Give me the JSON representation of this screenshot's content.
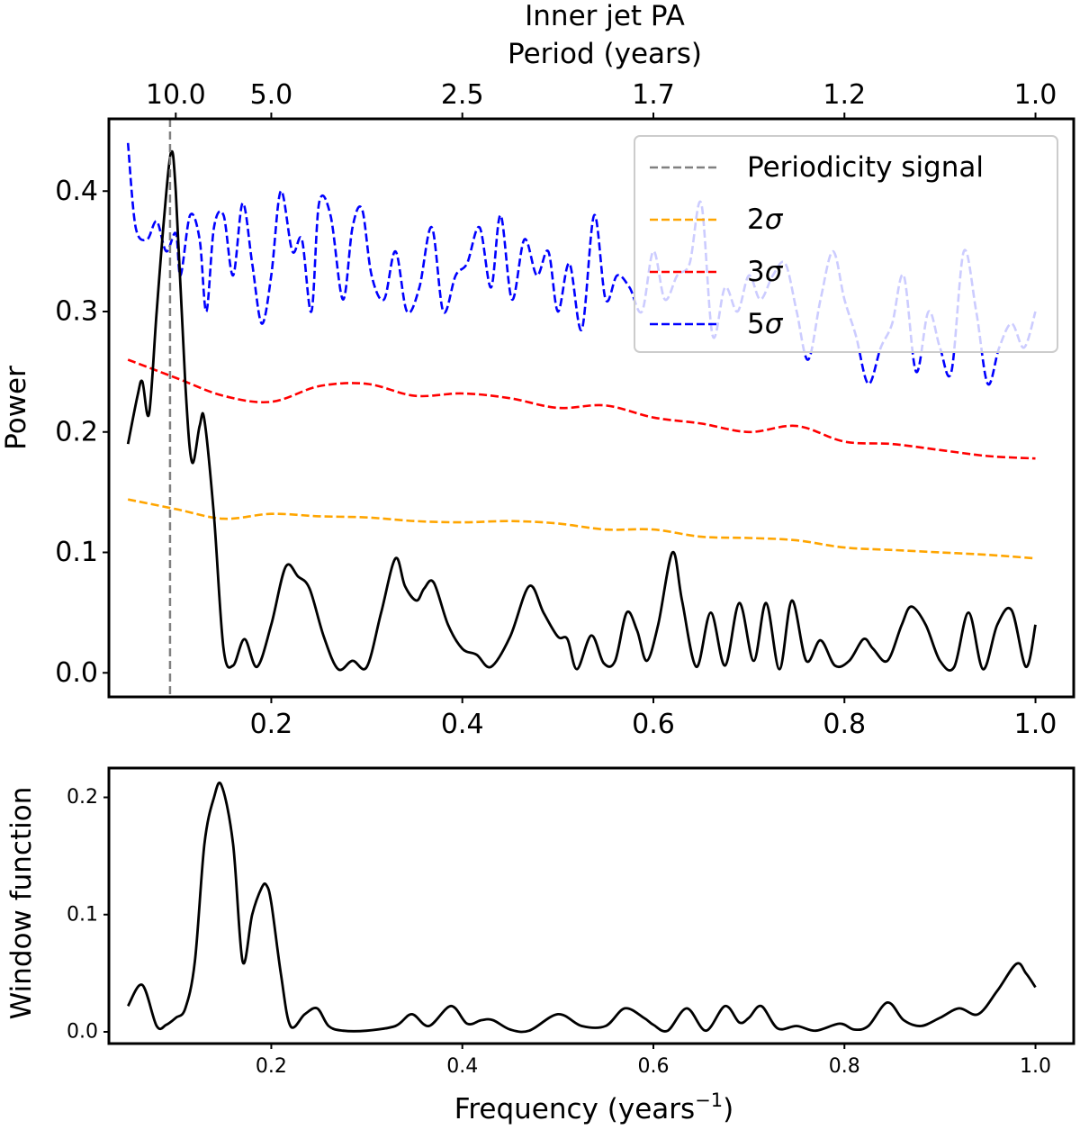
{
  "figure": {
    "title": "Inner jet PA",
    "top_axis_label": "Period (years)",
    "top_ticks": [
      {
        "freq": 0.1,
        "label": "10.0"
      },
      {
        "freq": 0.2,
        "label": "5.0"
      },
      {
        "freq": 0.4,
        "label": "2.5"
      },
      {
        "freq": 0.6,
        "label": "1.7"
      },
      {
        "freq": 0.8,
        "label": "1.2"
      },
      {
        "freq": 1.0,
        "label": "1.0"
      }
    ]
  },
  "chart_data": [
    {
      "type": "line",
      "panel": "periodogram",
      "xlabel": "",
      "ylabel": "Power",
      "xlim": [
        0.03,
        1.04
      ],
      "ylim": [
        -0.02,
        0.46
      ],
      "x_ticks": [
        "0.2",
        "0.4",
        "0.6",
        "0.8",
        "1.0"
      ],
      "y_ticks": [
        "0.0",
        "0.1",
        "0.2",
        "0.3",
        "0.4"
      ],
      "vline": {
        "name": "Periodicity signal",
        "x": 0.094,
        "color": "#808080",
        "style": "dashed"
      },
      "legend_position": "top-right",
      "legend": [
        {
          "label": "Periodicity signal",
          "prefix": "",
          "sigma": false,
          "color": "#808080"
        },
        {
          "label": "2",
          "prefix": "2",
          "sigma": true,
          "color": "#FFA500"
        },
        {
          "label": "3",
          "prefix": "3",
          "sigma": true,
          "color": "#FF0000"
        },
        {
          "label": "5",
          "prefix": "5",
          "sigma": true,
          "color": "#0000FF"
        }
      ],
      "series": [
        {
          "name": "Power",
          "color": "#000000",
          "style": "solid",
          "x": [
            0.05,
            0.06,
            0.065,
            0.072,
            0.08,
            0.088,
            0.095,
            0.1,
            0.11,
            0.117,
            0.125,
            0.13,
            0.14,
            0.15,
            0.16,
            0.172,
            0.185,
            0.2,
            0.215,
            0.228,
            0.24,
            0.255,
            0.27,
            0.285,
            0.3,
            0.315,
            0.33,
            0.34,
            0.352,
            0.36,
            0.37,
            0.385,
            0.4,
            0.415,
            0.43,
            0.45,
            0.47,
            0.485,
            0.5,
            0.51,
            0.52,
            0.535,
            0.548,
            0.56,
            0.572,
            0.583,
            0.593,
            0.605,
            0.62,
            0.63,
            0.645,
            0.66,
            0.675,
            0.69,
            0.705,
            0.718,
            0.732,
            0.745,
            0.76,
            0.775,
            0.79,
            0.805,
            0.82,
            0.83,
            0.845,
            0.86,
            0.87,
            0.885,
            0.9,
            0.915,
            0.93,
            0.945,
            0.96,
            0.975,
            0.99,
            1.0
          ],
          "values": [
            0.19,
            0.23,
            0.242,
            0.215,
            0.3,
            0.38,
            0.432,
            0.4,
            0.24,
            0.175,
            0.205,
            0.21,
            0.13,
            0.02,
            0.006,
            0.028,
            0.005,
            0.04,
            0.088,
            0.08,
            0.07,
            0.03,
            0.003,
            0.01,
            0.005,
            0.05,
            0.095,
            0.072,
            0.06,
            0.07,
            0.075,
            0.04,
            0.02,
            0.015,
            0.005,
            0.03,
            0.072,
            0.05,
            0.03,
            0.028,
            0.003,
            0.031,
            0.008,
            0.01,
            0.05,
            0.035,
            0.01,
            0.04,
            0.1,
            0.06,
            0.005,
            0.05,
            0.006,
            0.058,
            0.01,
            0.058,
            0.003,
            0.06,
            0.01,
            0.027,
            0.006,
            0.01,
            0.028,
            0.02,
            0.01,
            0.04,
            0.055,
            0.04,
            0.01,
            0.005,
            0.05,
            0.003,
            0.04,
            0.052,
            0.005,
            0.04
          ]
        },
        {
          "name": "2σ",
          "color": "#FFA500",
          "style": "dashed",
          "x": [
            0.05,
            0.1,
            0.15,
            0.2,
            0.25,
            0.3,
            0.35,
            0.4,
            0.45,
            0.5,
            0.55,
            0.6,
            0.65,
            0.7,
            0.75,
            0.8,
            0.85,
            0.9,
            0.95,
            1.0
          ],
          "values": [
            0.144,
            0.136,
            0.128,
            0.132,
            0.13,
            0.129,
            0.126,
            0.125,
            0.126,
            0.124,
            0.119,
            0.119,
            0.113,
            0.112,
            0.11,
            0.104,
            0.102,
            0.1,
            0.098,
            0.095
          ]
        },
        {
          "name": "3σ",
          "color": "#FF0000",
          "style": "dashed",
          "x": [
            0.05,
            0.1,
            0.15,
            0.2,
            0.25,
            0.3,
            0.35,
            0.4,
            0.45,
            0.5,
            0.55,
            0.6,
            0.65,
            0.7,
            0.75,
            0.8,
            0.85,
            0.9,
            0.95,
            1.0
          ],
          "values": [
            0.26,
            0.245,
            0.23,
            0.225,
            0.238,
            0.24,
            0.23,
            0.232,
            0.228,
            0.22,
            0.222,
            0.212,
            0.207,
            0.2,
            0.205,
            0.192,
            0.19,
            0.185,
            0.18,
            0.178
          ]
        },
        {
          "name": "5σ",
          "color": "#0000FF",
          "style": "dashed",
          "x": [
            0.05,
            0.058,
            0.07,
            0.08,
            0.09,
            0.1,
            0.105,
            0.115,
            0.125,
            0.132,
            0.14,
            0.15,
            0.16,
            0.17,
            0.18,
            0.19,
            0.2,
            0.21,
            0.222,
            0.232,
            0.242,
            0.25,
            0.262,
            0.275,
            0.285,
            0.295,
            0.305,
            0.318,
            0.33,
            0.342,
            0.355,
            0.368,
            0.38,
            0.393,
            0.405,
            0.418,
            0.43,
            0.44,
            0.452,
            0.465,
            0.478,
            0.49,
            0.5,
            0.512,
            0.525,
            0.538,
            0.55,
            0.562,
            0.575,
            0.588,
            0.6,
            0.612,
            0.625,
            0.638,
            0.65,
            0.662,
            0.675,
            0.688,
            0.7,
            0.712,
            0.725,
            0.738,
            0.75,
            0.762,
            0.775,
            0.788,
            0.8,
            0.812,
            0.825,
            0.838,
            0.85,
            0.862,
            0.875,
            0.888,
            0.9,
            0.912,
            0.925,
            0.938,
            0.95,
            0.962,
            0.975,
            0.988,
            1.0
          ],
          "values": [
            0.44,
            0.37,
            0.36,
            0.375,
            0.35,
            0.365,
            0.33,
            0.38,
            0.36,
            0.3,
            0.37,
            0.38,
            0.33,
            0.39,
            0.34,
            0.29,
            0.33,
            0.4,
            0.35,
            0.36,
            0.3,
            0.39,
            0.38,
            0.31,
            0.37,
            0.385,
            0.33,
            0.31,
            0.35,
            0.3,
            0.32,
            0.37,
            0.3,
            0.33,
            0.34,
            0.37,
            0.32,
            0.38,
            0.31,
            0.36,
            0.33,
            0.35,
            0.3,
            0.34,
            0.285,
            0.38,
            0.31,
            0.33,
            0.32,
            0.3,
            0.35,
            0.31,
            0.33,
            0.34,
            0.39,
            0.28,
            0.32,
            0.3,
            0.33,
            0.31,
            0.33,
            0.34,
            0.3,
            0.26,
            0.31,
            0.35,
            0.31,
            0.28,
            0.24,
            0.27,
            0.29,
            0.33,
            0.25,
            0.3,
            0.27,
            0.25,
            0.35,
            0.3,
            0.24,
            0.27,
            0.29,
            0.27,
            0.3
          ]
        }
      ]
    },
    {
      "type": "line",
      "panel": "window",
      "xlabel": "Frequency (years",
      "xlabel_sup": "−1",
      "xlabel_close": ")",
      "ylabel": "Window function",
      "xlim": [
        0.03,
        1.04
      ],
      "ylim": [
        -0.01,
        0.225
      ],
      "x_ticks": [
        "0.2",
        "0.4",
        "0.6",
        "0.8",
        "1.0"
      ],
      "y_ticks": [
        "0.0",
        "0.1",
        "0.2"
      ],
      "series": [
        {
          "name": "Window function",
          "color": "#000000",
          "style": "solid",
          "x": [
            0.05,
            0.065,
            0.08,
            0.09,
            0.1,
            0.11,
            0.12,
            0.13,
            0.14,
            0.148,
            0.16,
            0.17,
            0.18,
            0.19,
            0.195,
            0.2,
            0.21,
            0.22,
            0.235,
            0.248,
            0.26,
            0.275,
            0.3,
            0.33,
            0.347,
            0.365,
            0.388,
            0.405,
            0.42,
            0.432,
            0.45,
            0.47,
            0.5,
            0.525,
            0.55,
            0.57,
            0.59,
            0.6,
            0.615,
            0.635,
            0.655,
            0.675,
            0.69,
            0.7,
            0.713,
            0.73,
            0.75,
            0.77,
            0.795,
            0.81,
            0.825,
            0.845,
            0.862,
            0.88,
            0.9,
            0.92,
            0.94,
            0.96,
            0.98,
            0.99,
            1.0
          ],
          "values": [
            0.022,
            0.04,
            0.005,
            0.006,
            0.012,
            0.02,
            0.06,
            0.16,
            0.2,
            0.21,
            0.16,
            0.06,
            0.1,
            0.123,
            0.125,
            0.11,
            0.05,
            0.005,
            0.015,
            0.02,
            0.005,
            0.001,
            0.001,
            0.005,
            0.015,
            0.005,
            0.022,
            0.007,
            0.01,
            0.01,
            0.002,
            0.001,
            0.015,
            0.005,
            0.005,
            0.02,
            0.012,
            0.006,
            0.001,
            0.02,
            0.001,
            0.022,
            0.008,
            0.012,
            0.022,
            0.003,
            0.005,
            0.001,
            0.007,
            0.002,
            0.005,
            0.025,
            0.01,
            0.005,
            0.012,
            0.02,
            0.015,
            0.035,
            0.058,
            0.05,
            0.038
          ]
        }
      ]
    }
  ]
}
